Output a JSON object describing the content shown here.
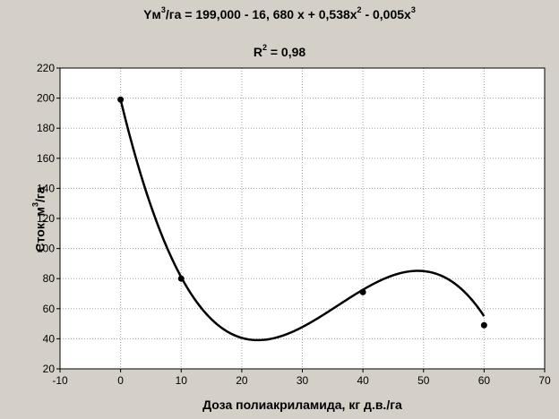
{
  "chart_data": {
    "type": "scatter",
    "title_prefix": "Yм",
    "title_mid": "/га = 199,000 - 16, 680 x + 0,538x",
    "title_mid2": " - 0,005x",
    "title_sup_unit": "3",
    "title_sup_x2": "2",
    "title_sup_x3": "3",
    "r2_prefix": "R",
    "r2_sup": "2",
    "r2_value": " = 0,98",
    "ylabel_prefix": "Сток, м",
    "ylabel_sup": "3",
    "ylabel_suffix": "/га",
    "xlabel": "Доза полиакриламида, кг д.в./га",
    "xlim": [
      -10,
      70
    ],
    "ylim": [
      20,
      220
    ],
    "xticks": [
      -10,
      0,
      10,
      20,
      30,
      40,
      50,
      60,
      70
    ],
    "yticks": [
      20,
      40,
      60,
      80,
      100,
      120,
      140,
      160,
      180,
      200,
      220
    ],
    "grid": true,
    "points": [
      {
        "x": 0,
        "y": 199
      },
      {
        "x": 10,
        "y": 80
      },
      {
        "x": 40,
        "y": 71
      },
      {
        "x": 60,
        "y": 49
      }
    ],
    "fit": {
      "type": "polynomial",
      "coefficients": [
        199.0,
        -16.68,
        0.538,
        -0.005
      ],
      "x_range": [
        0,
        60
      ]
    },
    "colors": {
      "background": "#d4d0c8",
      "plot_area": "#ffffff",
      "curve": "#000000",
      "grid": "#a0a0a0"
    }
  }
}
